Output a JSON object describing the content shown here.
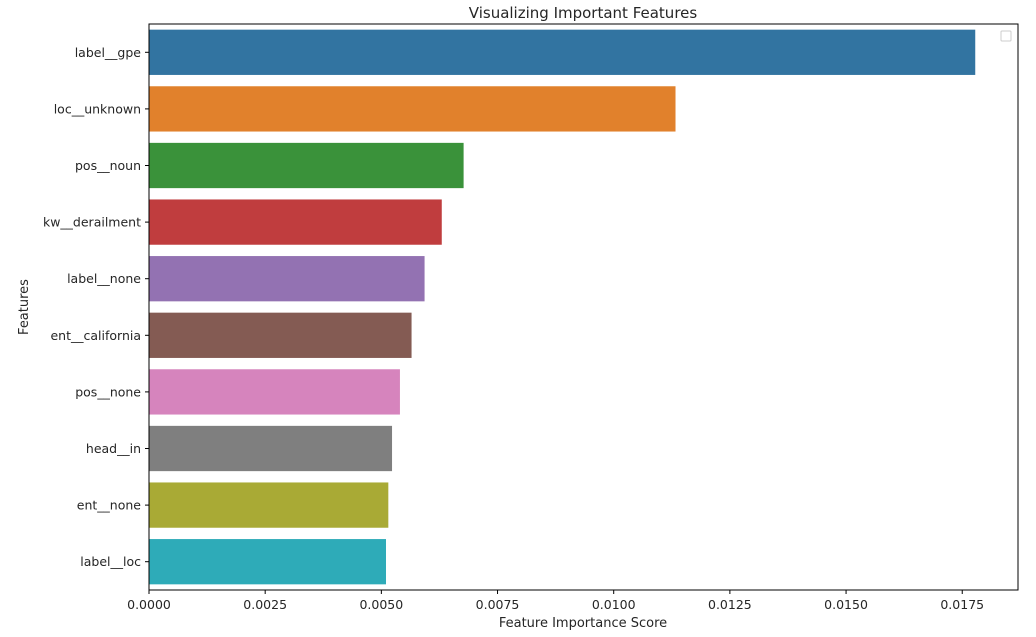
{
  "chart_data": {
    "type": "bar",
    "orientation": "horizontal",
    "title": "Visualizing Important Features",
    "xlabel": "Feature Importance Score",
    "ylabel": "Features",
    "categories": [
      "label__gpe",
      "loc__unknown",
      "pos__noun",
      "kw__derailment",
      "label__none",
      "ent__california",
      "pos__none",
      "head__in",
      "ent__none",
      "label__loc"
    ],
    "values": [
      0.01778,
      0.01133,
      0.00677,
      0.0063,
      0.00593,
      0.00565,
      0.0054,
      0.00523,
      0.00515,
      0.0051
    ],
    "colors": [
      "#3274a1",
      "#e1812c",
      "#3a923a",
      "#c03d3e",
      "#9372b2",
      "#845b53",
      "#d684bd",
      "#7f7f7f",
      "#a9aa35",
      "#2eabb8"
    ],
    "xlim": [
      0,
      0.0187
    ],
    "xticks": [
      "0.0000",
      "0.0025",
      "0.0050",
      "0.0075",
      "0.0100",
      "0.0125",
      "0.0150",
      "0.0175"
    ],
    "grid": false,
    "legend": "top-right (empty)"
  }
}
